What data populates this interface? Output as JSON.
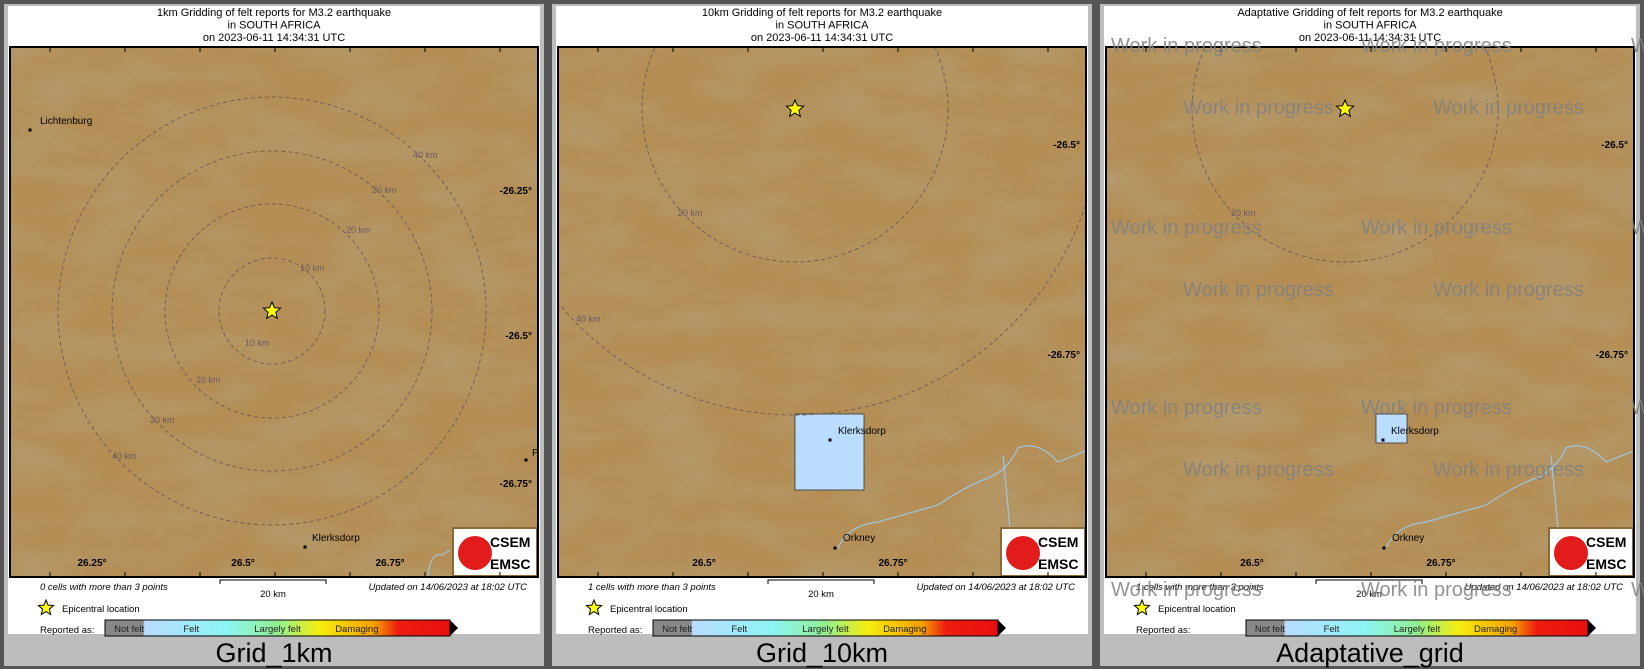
{
  "colors": {
    "map_base": "#b48e55",
    "circle": "#6e5a55",
    "epicenter": "#ffff00",
    "square": "#b9dcff",
    "river": "#9ec6e0",
    "bg": "#bdbdbd",
    "watermark": "#808080"
  },
  "legend": {
    "epicenter_label": "Epicentral location",
    "reported_label": "Reported as:",
    "scale_bar": "20 km",
    "classes": [
      "Not felt",
      "Felt",
      "Largely felt",
      "Damaging"
    ]
  },
  "logo": {
    "line1": "CSEM",
    "line2": "EMSC"
  },
  "watermark": "Work in progress",
  "panels": [
    {
      "name": "Grid_1km",
      "title": [
        "1km Gridding of felt reports for M3.2 earthquake",
        "in SOUTH AFRICA",
        "on  2023-06-11 14:34:31 UTC"
      ],
      "cells_text": "0 cells with more than 3 points",
      "updated": "Updated on 14/06/2023 at 18:02 UTC",
      "lat_ticks": [
        "-26.25°",
        "-26.5°",
        "-26.75°"
      ],
      "lon_ticks": [
        "26.25°",
        "26.5°",
        "26.75°"
      ],
      "rings": [
        "10 km",
        "20 km",
        "30 km",
        "40 km"
      ],
      "cities": [
        "Lichtenburg",
        "Klerksdorp",
        "P"
      ],
      "felt_squares": 0
    },
    {
      "name": "Grid_10km",
      "title": [
        "10km Gridding of felt reports for M3.2 earthquake",
        "in SOUTH AFRICA",
        "on  2023-06-11 14:34:31 UTC"
      ],
      "cells_text": "1 cells with more than 3 points",
      "updated": "Updated on 14/06/2023 at 18:02 UTC",
      "lat_ticks": [
        "-26.5°",
        "-26.75°"
      ],
      "lon_ticks": [
        "26.5°",
        "26.75°"
      ],
      "rings": [
        "20 km",
        "40 km"
      ],
      "cities": [
        "Klerksdorp",
        "Orkney"
      ],
      "felt_squares": 1
    },
    {
      "name": "Adaptative_grid",
      "title": [
        "Adaptative Gridding of felt reports for M3.2 earthquake",
        "in SOUTH AFRICA",
        "on  2023-06-11 14:34:31 UTC"
      ],
      "cells_text": "1 cells with more than 3 points",
      "updated": "Updated on 14/06/2023 at 18:02 UTC",
      "lat_ticks": [
        "-26.5°",
        "-26.75°"
      ],
      "lon_ticks": [
        "26.5°",
        "26.75°"
      ],
      "rings": [
        "20 km"
      ],
      "cities": [
        "Klerksdorp",
        "Orkney"
      ],
      "felt_squares": 1
    }
  ]
}
